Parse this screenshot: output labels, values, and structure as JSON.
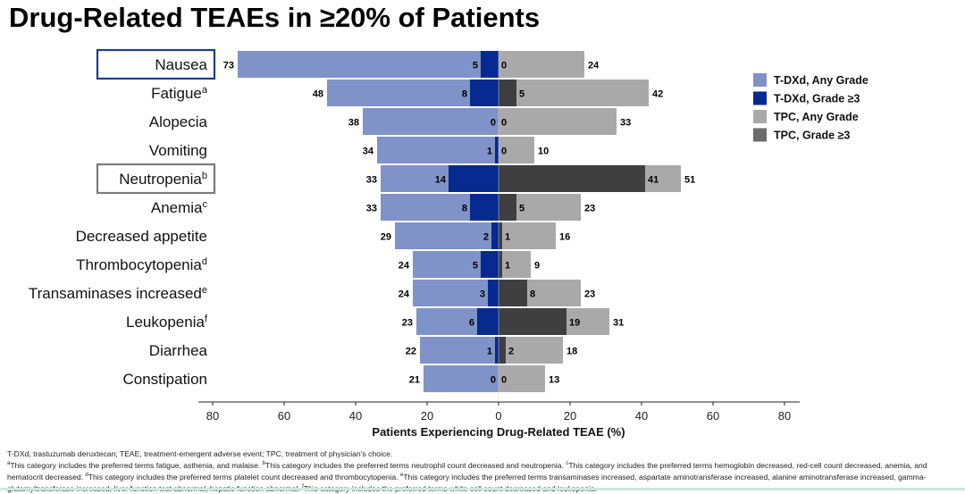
{
  "title": "Drug-Related TEAEs in ≥20% of Patients",
  "chart_data": {
    "type": "bar",
    "orientation": "horizontal-butterfly",
    "title": "Drug-Related TEAEs in ≥20% of Patients",
    "xlabel": "Patients Experiencing Drug-Related TEAE (%)",
    "xlim": [
      -80,
      80
    ],
    "xticks": [
      -80,
      -60,
      -40,
      -20,
      0,
      20,
      40,
      60,
      80
    ],
    "xtick_labels": [
      "80",
      "60",
      "40",
      "20",
      "0",
      "20",
      "40",
      "60",
      "80"
    ],
    "legend_position": "right",
    "categories": [
      {
        "label": "Nausea",
        "sup": "",
        "highlight": "#1f3a93"
      },
      {
        "label": "Fatigue",
        "sup": "a",
        "highlight": ""
      },
      {
        "label": "Alopecia",
        "sup": "",
        "highlight": ""
      },
      {
        "label": "Vomiting",
        "sup": "",
        "highlight": ""
      },
      {
        "label": "Neutropenia",
        "sup": "b",
        "highlight": "#7a7a7a"
      },
      {
        "label": "Anemia",
        "sup": "c",
        "highlight": ""
      },
      {
        "label": "Decreased appetite",
        "sup": "",
        "highlight": ""
      },
      {
        "label": "Thrombocytopenia",
        "sup": "d",
        "highlight": ""
      },
      {
        "label": "Transaminases increased",
        "sup": "e",
        "highlight": ""
      },
      {
        "label": "Leukopenia",
        "sup": "f",
        "highlight": ""
      },
      {
        "label": "Diarrhea",
        "sup": "",
        "highlight": ""
      },
      {
        "label": "Constipation",
        "sup": "",
        "highlight": ""
      }
    ],
    "series": [
      {
        "name": "T-DXd, Any Grade",
        "color": "#7f93c9",
        "side": "left",
        "values": [
          73,
          48,
          38,
          34,
          33,
          33,
          29,
          24,
          24,
          23,
          22,
          21
        ]
      },
      {
        "name": "T-DXd, Grade ≥3",
        "color": "#062a8f",
        "side": "left",
        "values": [
          5,
          8,
          0,
          1,
          14,
          8,
          2,
          5,
          3,
          6,
          1,
          0
        ]
      },
      {
        "name": "TPC, Any Grade",
        "color": "#a9a9a9",
        "side": "right",
        "values": [
          24,
          42,
          33,
          10,
          51,
          23,
          16,
          9,
          23,
          31,
          18,
          13
        ]
      },
      {
        "name": "TPC, Grade ≥3",
        "color": "#3f3f3f",
        "legend_color": "#6b6b6b",
        "side": "right",
        "values": [
          0,
          5,
          0,
          0,
          41,
          5,
          1,
          1,
          8,
          19,
          2,
          0
        ]
      }
    ]
  },
  "footnotes": {
    "abbrev": "T-DXd, trastuzumab deruxtecan; TEAE, treatment-emergent adverse event; TPC, treatment of physician’s choice.",
    "notes": [
      {
        "mark": "a",
        "text": "This category includes the preferred terms fatigue, asthenia, and malaise. "
      },
      {
        "mark": "b",
        "text": "This category includes the preferred terms neutrophil count decreased and neutropenia. "
      },
      {
        "mark": "c",
        "text": "This category includes the preferred terms hemoglobin decreased, red-cell count decreased, anemia, and hematocrit decreased. "
      },
      {
        "mark": "d",
        "text": "This category includes the preferred terms platelet count decreased and thrombocytopenia. "
      },
      {
        "mark": "e",
        "text": "This category includes the preferred terms transaminases increased, aspartate aminotransferase increased, alanine aminotransferase increased, gamma-glutamyltransferase increased, liver function test abnormal, hepatic function abnormal. "
      },
      {
        "mark": "f",
        "text": "This category includes the preferred terms white-cell count decreased and leukopenia."
      }
    ]
  }
}
